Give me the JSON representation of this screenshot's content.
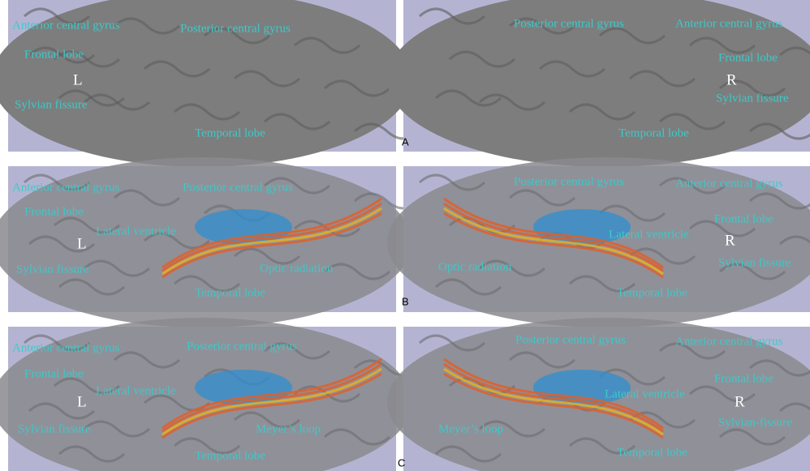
{
  "panels": [
    {
      "letter": "A",
      "left": {
        "side": "L",
        "labels": [
          "Anterior central gyrus",
          "Posterior central gyrus",
          "Frontal lobe",
          "Sylvian fissure",
          "Temporal lobe"
        ]
      },
      "right": {
        "side": "R",
        "labels": [
          "Posterior central gyrus",
          "Anterior central gyrus",
          "Frontal lobe",
          "Sylvian fissure",
          "Temporal lobe"
        ]
      }
    },
    {
      "letter": "B",
      "left": {
        "side": "L",
        "labels": [
          "Anterior central gyrus",
          "Posterior central gyrus",
          "Frontal lobe",
          "Lateral ventricle",
          "Sylvian fissure",
          "Optic radiation",
          "Temporal lobe"
        ]
      },
      "right": {
        "side": "R",
        "labels": [
          "Posterior central gyrus",
          "Anterior central gyrus",
          "Frontal lobe",
          "Lateral ventricle",
          "Optic radiation",
          "Sylvian fissure",
          "Temporal lobe"
        ]
      }
    },
    {
      "letter": "C",
      "left": {
        "side": "L",
        "labels": [
          "Anterior central gyrus",
          "Posterior central gyrus",
          "Frontal lobe",
          "Lateral ventricle",
          "Sylvian fissure",
          "Meyer’s loop",
          "Temporal lobe"
        ]
      },
      "right": {
        "side": "R",
        "labels": [
          "Posterior central gyrus",
          "Anterior central gyrus",
          "Frontal lobe",
          "Lateral ventricle",
          "Meyer’s loop",
          "Sylvian-fissure",
          "Temporal lobe"
        ]
      }
    }
  ]
}
